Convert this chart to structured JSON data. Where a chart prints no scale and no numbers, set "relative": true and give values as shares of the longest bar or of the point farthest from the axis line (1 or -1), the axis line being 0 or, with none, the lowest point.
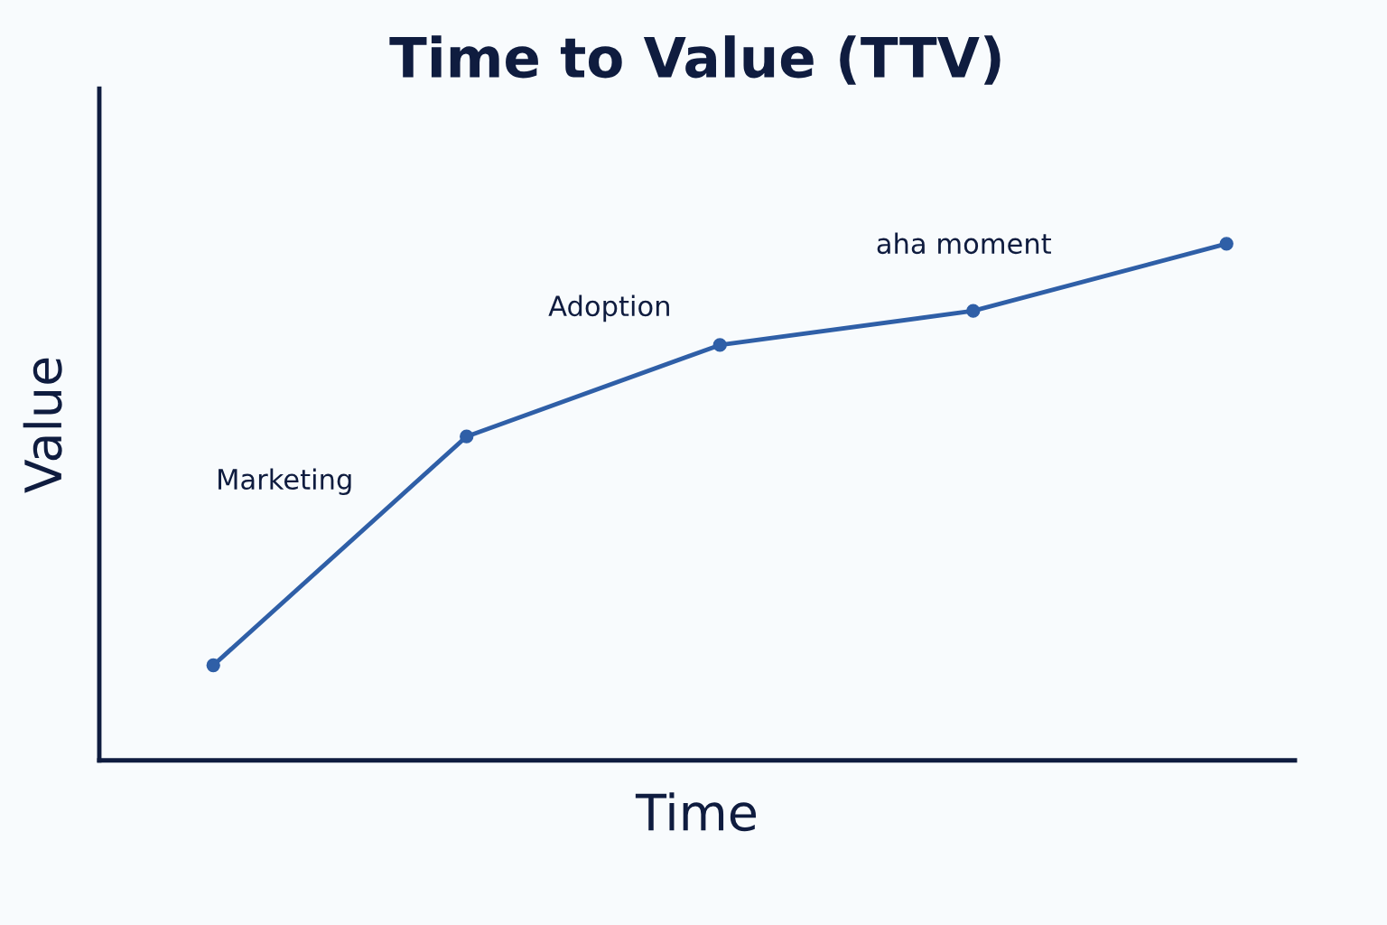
{
  "chart_data": {
    "type": "line",
    "title": "Time to Value (TTV)",
    "xlabel": "Time",
    "ylabel": "Value",
    "categories": [
      null,
      null,
      null,
      null,
      null
    ],
    "relative": true,
    "marker": "circle",
    "line_style": "solid",
    "grid": false,
    "series": [
      {
        "color": "#2f5fa7",
        "values": [
          0.184,
          0.627,
          0.804,
          0.87,
          1.0
        ]
      }
    ],
    "annotations": [
      "Marketing",
      "Adoption",
      "aha moment"
    ]
  }
}
